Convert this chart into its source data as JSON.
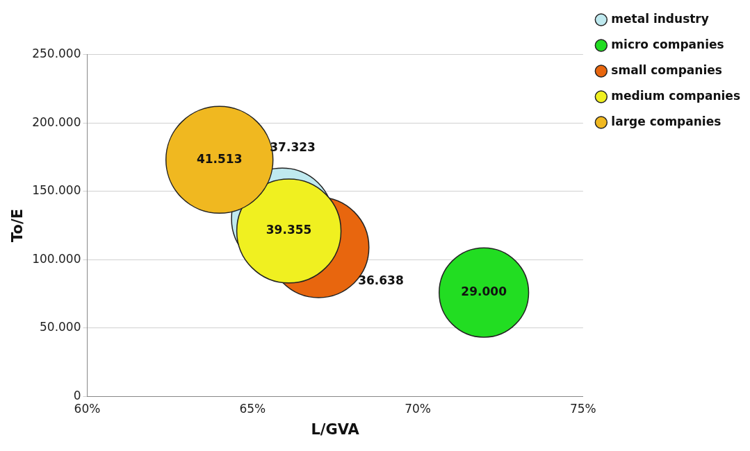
{
  "chart_data": {
    "type": "bubble",
    "xlabel": "L/GVA",
    "ylabel": "To/E",
    "xlim": [
      60,
      75
    ],
    "xticks": [
      {
        "value": 60,
        "label": "60%"
      },
      {
        "value": 65,
        "label": "65%"
      },
      {
        "value": 70,
        "label": "70%"
      },
      {
        "value": 75,
        "label": "75%"
      }
    ],
    "ylim": [
      0,
      250000
    ],
    "yticks": [
      {
        "value": 0,
        "label": "0"
      },
      {
        "value": 50000,
        "label": "50.000"
      },
      {
        "value": 100000,
        "label": "100.000"
      },
      {
        "value": 150000,
        "label": "150.000"
      },
      {
        "value": 200000,
        "label": "200.000"
      },
      {
        "value": 250000,
        "label": "250.000"
      }
    ],
    "grid": "y",
    "legend": "top right",
    "series": [
      {
        "name": "metal industry",
        "color": "#bfe9ef",
        "x": [
          65.9
        ],
        "values": [
          130000
        ],
        "sizes": [
          37323
        ],
        "value_labels": [
          "37.323"
        ]
      },
      {
        "name": "micro companies",
        "color": "#22dd22",
        "x": [
          72
        ],
        "values": [
          76000
        ],
        "sizes": [
          29000
        ],
        "value_labels": [
          "29.000"
        ]
      },
      {
        "name": "small companies",
        "color": "#e8660e",
        "x": [
          67
        ],
        "values": [
          109000
        ],
        "sizes": [
          36638
        ],
        "value_labels": [
          "36.638"
        ]
      },
      {
        "name": "medium companies",
        "color": "#f0f020",
        "x": [
          66.1
        ],
        "values": [
          121000
        ],
        "sizes": [
          39355
        ],
        "value_labels": [
          "39.355"
        ]
      },
      {
        "name": "large companies",
        "color": "#f0b820",
        "x": [
          64
        ],
        "values": [
          173000
        ],
        "sizes": [
          41513
        ],
        "value_labels": [
          "41.513"
        ]
      }
    ]
  }
}
